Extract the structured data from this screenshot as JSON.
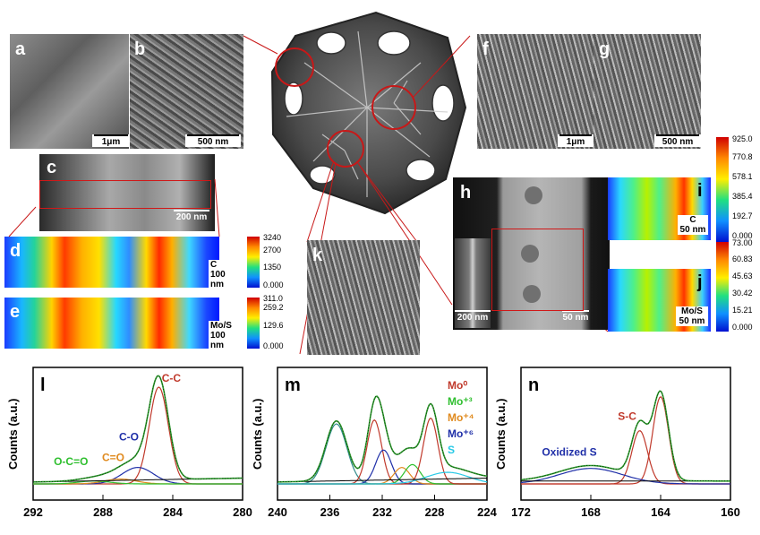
{
  "panels": {
    "a": {
      "letter": "a",
      "scale": "1μm"
    },
    "b": {
      "letter": "b",
      "scale": "500 nm"
    },
    "c": {
      "letter": "c",
      "scale": "200 nm"
    },
    "d": {
      "letter": "d",
      "element": "C",
      "scale": "100 nm",
      "colorbar": [
        "3240",
        "2700",
        "1350",
        "0.000"
      ]
    },
    "e": {
      "letter": "e",
      "element": "Mo/S",
      "scale": "100 nm",
      "colorbar": [
        "311.0",
        "259.2",
        "129.6",
        "0.000"
      ]
    },
    "f": {
      "letter": "f",
      "scale": "1μm"
    },
    "g": {
      "letter": "g",
      "scale": "500 nm"
    },
    "h": {
      "letter": "h",
      "scale_inset": "200 nm",
      "scale": "50 nm"
    },
    "i": {
      "letter": "i",
      "element": "C",
      "scale": "50 nm",
      "colorbar": [
        "925.0",
        "770.8",
        "578.1",
        "385.4",
        "192.7",
        "0.000"
      ]
    },
    "j": {
      "letter": "j",
      "element": "Mo/S",
      "scale": "50 nm",
      "colorbar": [
        "73.00",
        "60.83",
        "45.63",
        "30.42",
        "15.21",
        "0.000"
      ]
    },
    "k": {
      "letter": "k"
    }
  },
  "chart_data": [
    {
      "type": "line",
      "panel": "l",
      "ylabel": "Counts (a.u.)",
      "xticks": [
        "292",
        "288",
        "284",
        "280"
      ],
      "xlim": [
        292,
        280
      ],
      "peaks": [
        {
          "label": "C-C",
          "center": 284.8,
          "height": 1.0,
          "color": "#c0392b"
        },
        {
          "label": "C-O",
          "center": 286.0,
          "height": 0.17,
          "color": "#1f2fa8"
        },
        {
          "label": "C=O",
          "center": 287.0,
          "height": 0.05,
          "color": "#e08a1e"
        },
        {
          "label": "O-C=O",
          "center": 288.5,
          "height": 0.03,
          "color": "#2fbf2f"
        }
      ]
    },
    {
      "type": "line",
      "panel": "m",
      "ylabel": "Counts (a.u.)",
      "xticks": [
        "240",
        "236",
        "232",
        "228",
        "224"
      ],
      "xlim": [
        240,
        224
      ],
      "legend": [
        {
          "label": "Mo⁰",
          "color": "#c0392b"
        },
        {
          "label": "Mo⁺³",
          "color": "#2fbf2f"
        },
        {
          "label": "Mo⁺⁴",
          "color": "#e08a1e"
        },
        {
          "label": "Mo⁺⁶",
          "color": "#1f2fa8"
        },
        {
          "label": "S",
          "color": "#27c9e6"
        }
      ],
      "peaks": [
        {
          "center": 235.5,
          "height": 0.62,
          "color": "#2f8a8a"
        },
        {
          "center": 232.6,
          "height": 0.66,
          "color": "#c0392b"
        },
        {
          "center": 231.9,
          "height": 0.35,
          "color": "#1f2fa8"
        },
        {
          "center": 230.5,
          "height": 0.17,
          "color": "#e08a1e"
        },
        {
          "center": 229.7,
          "height": 0.2,
          "color": "#2fbf2f"
        },
        {
          "center": 228.3,
          "height": 0.68,
          "color": "#c0392b"
        },
        {
          "center": 227.0,
          "height": 0.12,
          "color": "#27c9e6"
        }
      ]
    },
    {
      "type": "line",
      "panel": "n",
      "ylabel": "Counts (a.u.)",
      "xticks": [
        "172",
        "168",
        "164",
        "160"
      ],
      "xlim": [
        172,
        160
      ],
      "peaks": [
        {
          "label": "S-C",
          "center": 165.2,
          "height": 0.55,
          "color": "#c0392b"
        },
        {
          "center": 164.0,
          "height": 0.9,
          "color": "#c0392b"
        },
        {
          "label": "Oxidized S",
          "center": 168.0,
          "height": 0.16,
          "color": "#1f2fa8"
        }
      ]
    }
  ]
}
